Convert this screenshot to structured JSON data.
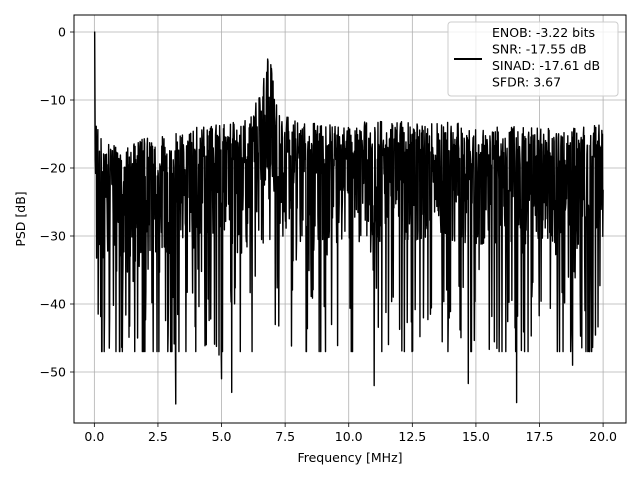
{
  "chart_data": {
    "type": "line",
    "xlabel": "Frequency [MHz]",
    "ylabel": "PSD [dB]",
    "xlim": [
      -0.8,
      20.9
    ],
    "ylim": [
      -57.5,
      2.5
    ],
    "x_ticks": [
      0.0,
      2.5,
      5.0,
      7.5,
      10.0,
      12.5,
      15.0,
      17.5,
      20.0
    ],
    "x_tick_labels": [
      "0.0",
      "2.5",
      "5.0",
      "7.5",
      "10.0",
      "12.5",
      "15.0",
      "17.5",
      "20.0"
    ],
    "y_ticks": [
      0,
      -10,
      -20,
      -30,
      -40,
      -50
    ],
    "y_tick_labels": [
      "0",
      "−10",
      "−20",
      "−30",
      "−40",
      "−50"
    ],
    "grid": true,
    "legend_position": "top-right",
    "series": [
      {
        "legend_lines": [
          "ENOB: -3.22 bits",
          "SNR: -17.55 dB",
          "SINAD: -17.61 dB",
          "SFDR: 3.67"
        ],
        "color": "#000000",
        "x_range": [
          0.0,
          20.0
        ],
        "envelope_max": [
          [
            0.0,
            0.0
          ],
          [
            0.05,
            -10.5
          ],
          [
            0.3,
            -16
          ],
          [
            1.0,
            -17
          ],
          [
            2.0,
            -15.5
          ],
          [
            3.0,
            -15
          ],
          [
            4.0,
            -14
          ],
          [
            5.0,
            -13.5
          ],
          [
            6.0,
            -13
          ],
          [
            6.5,
            -9
          ],
          [
            6.8,
            -3.5
          ],
          [
            7.0,
            -5
          ],
          [
            7.2,
            -12
          ],
          [
            8.0,
            -13
          ],
          [
            9.0,
            -13.5
          ],
          [
            10.0,
            -13
          ],
          [
            11.0,
            -13
          ],
          [
            12.0,
            -13
          ],
          [
            13.0,
            -13.5
          ],
          [
            14.0,
            -13
          ],
          [
            15.0,
            -14
          ],
          [
            16.0,
            -13.5
          ],
          [
            17.0,
            -14
          ],
          [
            18.0,
            -14
          ],
          [
            19.0,
            -14
          ],
          [
            20.0,
            -13.5
          ]
        ],
        "deep_minima": [
          [
            0.4,
            -41
          ],
          [
            1.0,
            -47
          ],
          [
            1.7,
            -45
          ],
          [
            3.2,
            -54.7
          ],
          [
            4.4,
            -46
          ],
          [
            4.9,
            -47.5
          ],
          [
            5.0,
            -51
          ],
          [
            5.4,
            -53
          ],
          [
            11.0,
            -52
          ],
          [
            14.7,
            -51.7
          ],
          [
            16.6,
            -54.5
          ],
          [
            18.8,
            -49
          ]
        ]
      }
    ]
  }
}
